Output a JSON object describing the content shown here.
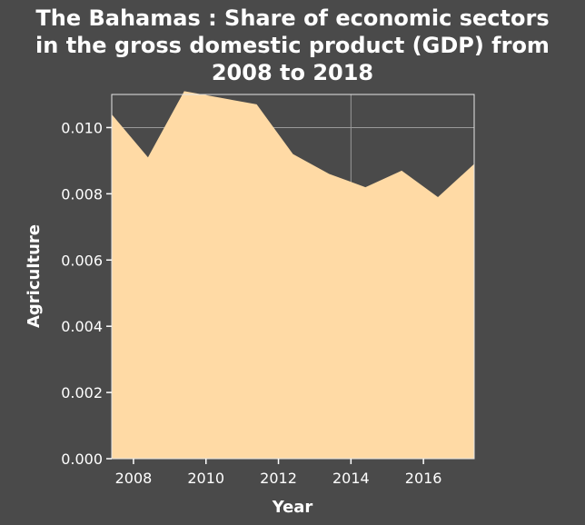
{
  "chart_data": {
    "type": "area",
    "title_lines": [
      "The Bahamas : Share of economic sectors",
      "in the gross domestic product (GDP) from",
      "2008 to 2018"
    ],
    "xlabel": "Year",
    "ylabel": "Agriculture",
    "x": [
      2007.4,
      2008.4,
      2009.4,
      2010.4,
      2011.4,
      2012.4,
      2013.4,
      2014.4,
      2015.4,
      2016.4,
      2017.4
    ],
    "series": [
      {
        "values": [
          0.0104,
          0.0091,
          0.0111,
          0.0109,
          0.0107,
          0.0092,
          0.0086,
          0.0082,
          0.0087,
          0.0079,
          0.0089
        ]
      }
    ],
    "xlim": [
      2007.4,
      2017.4
    ],
    "ylim": [
      0,
      0.011
    ],
    "x_ticks": [
      2008,
      2010,
      2012,
      2014,
      2016
    ],
    "x_tick_labels": [
      "2008",
      "2010",
      "2012",
      "2014",
      "2016"
    ],
    "y_ticks": [
      0,
      0.002,
      0.004,
      0.006,
      0.008,
      0.01
    ],
    "y_tick_labels": [
      "0.000",
      "0.002",
      "0.004",
      "0.006",
      "0.008",
      "0.010"
    ],
    "grid": true,
    "colors": {
      "background": "#4a4a4a",
      "fill": "#ffdaa5",
      "grid": "#9a9a9a",
      "text": "#ffffff"
    }
  }
}
